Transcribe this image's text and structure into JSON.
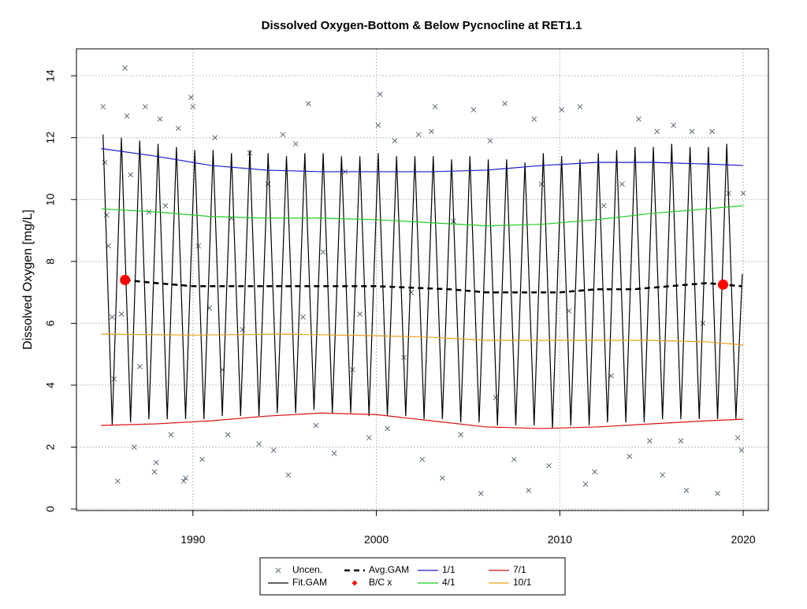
{
  "chart_data": {
    "type": "line",
    "title": "Dissolved Oxygen-Bottom & Below Pycnocline at RET1.1",
    "y_label": "Dissolved Oxygen [mg/L]",
    "xlim": [
      1983.65,
      2021.37
    ],
    "ylim": [
      -0.05,
      14.87
    ],
    "xticks": [
      1990,
      2000,
      2010,
      2020
    ],
    "yticks": [
      0,
      2,
      4,
      6,
      8,
      10,
      12,
      14
    ],
    "grid": true,
    "series": [
      {
        "name": "Uncen.",
        "mark": "x",
        "color": "#5a6a7a",
        "x": [
          1985.1,
          1985.2,
          1985.3,
          1985.4,
          1985.6,
          1985.7,
          1985.9,
          1986.1,
          1986.3,
          1986.4,
          1986.6,
          1986.8,
          1987.1,
          1987.4,
          1987.6,
          1987.9,
          1988.0,
          1988.2,
          1988.5,
          1988.8,
          1989.2,
          1989.5,
          1989.6,
          1989.9,
          1990.0,
          1990.3,
          1990.5,
          1990.9,
          1991.2,
          1991.6,
          1991.9,
          1992.1,
          1992.7,
          1993.1,
          1993.6,
          1994.1,
          1994.4,
          1994.9,
          1995.2,
          1995.6,
          1996.0,
          1996.3,
          1996.7,
          1997.1,
          1997.7,
          1998.3,
          1998.7,
          1999.1,
          1999.6,
          2000.1,
          2000.2,
          2000.6,
          2001.0,
          2001.5,
          2001.9,
          2002.3,
          2002.5,
          2003.0,
          2003.2,
          2003.6,
          2004.2,
          2004.6,
          2005.3,
          2005.7,
          2006.2,
          2006.5,
          2007.0,
          2007.5,
          2008.3,
          2008.6,
          2009.0,
          2009.4,
          2010.1,
          2010.5,
          2011.1,
          2011.4,
          2011.9,
          2012.4,
          2012.8,
          2013.4,
          2013.8,
          2014.3,
          2014.9,
          2015.3,
          2015.6,
          2016.2,
          2016.6,
          2016.9,
          2017.2,
          2017.8,
          2018.3,
          2018.6,
          2019.2,
          2019.7,
          2019.9,
          2020.0
        ],
        "values": [
          13.0,
          11.2,
          9.5,
          8.5,
          6.2,
          4.2,
          0.9,
          6.3,
          14.25,
          12.7,
          10.8,
          2.0,
          4.6,
          13.0,
          9.6,
          1.2,
          1.5,
          12.6,
          9.8,
          2.4,
          12.3,
          0.9,
          1.0,
          13.3,
          13.0,
          8.5,
          1.6,
          6.5,
          12.0,
          4.5,
          2.4,
          9.4,
          5.8,
          11.5,
          2.1,
          10.5,
          1.9,
          12.1,
          1.1,
          11.8,
          6.2,
          13.1,
          2.7,
          8.3,
          1.8,
          10.9,
          4.5,
          6.3,
          2.3,
          12.4,
          13.4,
          2.6,
          11.9,
          4.9,
          7.0,
          12.1,
          1.6,
          12.2,
          13.0,
          1.0,
          9.3,
          2.4,
          12.9,
          0.5,
          11.9,
          3.6,
          13.1,
          1.6,
          0.6,
          12.6,
          10.5,
          1.4,
          12.9,
          6.4,
          13.0,
          0.8,
          1.2,
          9.8,
          4.3,
          10.5,
          1.7,
          12.6,
          2.2,
          12.2,
          1.1,
          12.4,
          2.2,
          0.6,
          12.2,
          6.0,
          12.2,
          0.5,
          10.2,
          2.3,
          1.9,
          10.2
        ]
      },
      {
        "name": "Fit.GAM",
        "mark": "line",
        "color": "#000000",
        "x": [
          1985.1,
          1985.6,
          1986.1,
          1986.6,
          1987.1,
          1987.6,
          1988.1,
          1988.6,
          1989.1,
          1989.6,
          1990.1,
          1990.6,
          1991.1,
          1991.6,
          1992.1,
          1992.6,
          1993.1,
          1993.6,
          1994.1,
          1994.6,
          1995.1,
          1995.6,
          1996.1,
          1996.6,
          1997.1,
          1997.6,
          1998.1,
          1998.6,
          1999.1,
          1999.6,
          2000.1,
          2000.6,
          2001.1,
          2001.6,
          2002.1,
          2002.6,
          2003.1,
          2003.6,
          2004.1,
          2004.6,
          2005.1,
          2005.6,
          2006.1,
          2006.6,
          2007.1,
          2007.6,
          2008.1,
          2008.6,
          2009.1,
          2009.6,
          2010.1,
          2010.6,
          2011.1,
          2011.6,
          2012.1,
          2012.6,
          2013.1,
          2013.6,
          2014.1,
          2014.6,
          2015.1,
          2015.6,
          2016.1,
          2016.6,
          2017.1,
          2017.6,
          2018.1,
          2018.6,
          2019.1,
          2019.6,
          2019.95
        ],
        "values": [
          12.1,
          2.7,
          12.0,
          2.8,
          11.9,
          2.9,
          11.8,
          2.9,
          11.7,
          2.9,
          11.6,
          2.9,
          11.6,
          3.0,
          11.5,
          3.0,
          11.6,
          3.0,
          11.5,
          3.1,
          11.4,
          3.1,
          11.5,
          3.2,
          11.5,
          3.1,
          11.4,
          3.1,
          11.4,
          3.0,
          11.5,
          3.0,
          11.4,
          3.0,
          11.4,
          2.9,
          11.4,
          2.9,
          11.3,
          2.8,
          11.4,
          2.8,
          11.3,
          2.7,
          11.3,
          2.7,
          11.2,
          2.7,
          11.5,
          2.6,
          11.4,
          2.7,
          11.3,
          2.7,
          11.5,
          2.8,
          11.6,
          2.8,
          11.7,
          2.8,
          11.7,
          2.9,
          11.8,
          2.9,
          11.7,
          2.9,
          11.7,
          2.9,
          11.8,
          2.9,
          7.6
        ]
      },
      {
        "name": "Avg.GAM",
        "mark": "dashed",
        "color": "#000000",
        "x": [
          1986.3,
          1988,
          1990,
          1992,
          1994,
          1996,
          1998,
          2000,
          2002,
          2004,
          2006,
          2008,
          2010,
          2012,
          2014,
          2016,
          2018,
          2019.9
        ],
        "values": [
          7.4,
          7.3,
          7.2,
          7.2,
          7.2,
          7.2,
          7.2,
          7.2,
          7.15,
          7.1,
          7.0,
          7.0,
          7.0,
          7.1,
          7.1,
          7.2,
          7.3,
          7.2
        ]
      },
      {
        "name": "B/C x",
        "mark": "dot",
        "color": "#ff0000",
        "x": [
          1986.3,
          2018.9
        ],
        "values": [
          7.4,
          7.25
        ]
      },
      {
        "name": "1/1",
        "mark": "line",
        "color": "#1a1acd",
        "x": [
          1985,
          1988,
          1991,
          1994,
          1997,
          2000,
          2003,
          2006,
          2009,
          2012,
          2015,
          2018,
          2020
        ],
        "values": [
          11.65,
          11.4,
          11.1,
          10.95,
          10.9,
          10.9,
          10.9,
          10.95,
          11.1,
          11.2,
          11.2,
          11.15,
          11.1
        ]
      },
      {
        "name": "4/1",
        "mark": "line",
        "color": "#22cc22",
        "x": [
          1985,
          1988,
          1991,
          1994,
          1997,
          2000,
          2003,
          2006,
          2009,
          2012,
          2015,
          2018,
          2020
        ],
        "values": [
          9.7,
          9.6,
          9.45,
          9.4,
          9.4,
          9.35,
          9.25,
          9.15,
          9.2,
          9.35,
          9.55,
          9.7,
          9.8
        ]
      },
      {
        "name": "7/1",
        "mark": "line",
        "color": "#dd1111",
        "x": [
          1985,
          1988,
          1991,
          1994,
          1997,
          2000,
          2003,
          2006,
          2009,
          2012,
          2015,
          2018,
          2020
        ],
        "values": [
          2.7,
          2.75,
          2.85,
          3.0,
          3.1,
          3.05,
          2.85,
          2.65,
          2.6,
          2.65,
          2.75,
          2.85,
          2.9
        ]
      },
      {
        "name": "10/1",
        "mark": "line",
        "color": "#e6a020",
        "x": [
          1985,
          1990,
          1995,
          2000,
          2003,
          2006,
          2010,
          2015,
          2018,
          2020
        ],
        "values": [
          5.65,
          5.62,
          5.65,
          5.6,
          5.55,
          5.45,
          5.45,
          5.45,
          5.4,
          5.3
        ]
      }
    ]
  }
}
